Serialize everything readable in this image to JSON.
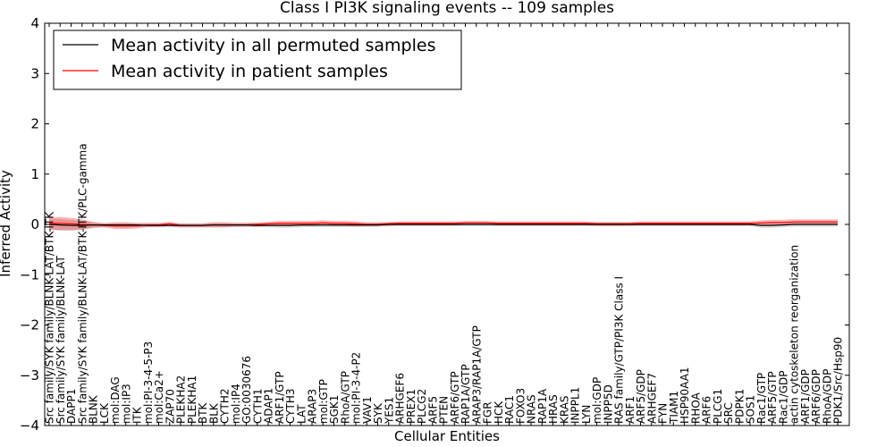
{
  "chart_data": {
    "type": "line",
    "title": "Class I PI3K signaling events -- 109 samples",
    "xlabel": "Cellular Entities",
    "ylabel": "Inferred Activity",
    "ylim": [
      -4,
      4
    ],
    "yticks": [
      -4,
      -3,
      -2,
      -1,
      0,
      1,
      2,
      3,
      4
    ],
    "legend_position": "top-left",
    "categories": [
      "Src family/SYK family/BLNK-LAT/BTK-ITK",
      "Src family/SYK family/BLNK-LAT",
      "DAPP1",
      "Src family/SYK family/BLNK-LAT/BTK-ITK/PLC-gamma",
      "BLNK",
      "LCK",
      "mol:DAG",
      "mol:IP3",
      "ITK",
      "mol:PI-3-4-5-P3",
      "mol:Ca2+",
      "ZAP70",
      "PLEKHA2",
      "PLEKHA1",
      "BTK",
      "BLK",
      "CYTH2",
      "mol:IP4",
      "GO:0030676",
      "CYTH1",
      "ADAP1",
      "ARF1/GTP",
      "CYTH3",
      "LAT",
      "ARAP3",
      "mol:GTP",
      "SGK1",
      "RhoA/GTP",
      "mol:PI-3-4-P2",
      "VAV1",
      "SYK",
      "YES1",
      "ARHGEF6",
      "PREX1",
      "PLCG2",
      "ARF5",
      "PTEN",
      "ARF6/GTP",
      "RAP1A/GTP",
      "ARAP3/RAP1A/GTP",
      "FGR",
      "HCK",
      "RAC1",
      "FOXO3",
      "NRAS",
      "RAP1A",
      "HRAS",
      "KRAS",
      "INPPL1",
      "LYN",
      "mol:GDP",
      "INPP5D",
      "RAS family/GTP/PI3K Class I",
      "ARF1",
      "ARF5/GDP",
      "ARHGEF7",
      "FYN",
      "TIAM1",
      "HSP90AA1",
      "RHOA",
      "ARF6",
      "PLCG1",
      "SRC",
      "PDPK1",
      "SOS1",
      "Rac1/GTP",
      "ARF5/GTP",
      "Rac1/GDP",
      "actin cytoskeleton reorganization",
      "ARF1/GDP",
      "ARF6/GDP",
      "RhoA/GDP",
      "PDK1/Src/Hsp90"
    ],
    "series": [
      {
        "name": "Mean activity in all permuted samples",
        "color": "#000000",
        "values": [
          0.0,
          -0.01,
          -0.02,
          -0.02,
          -0.01,
          -0.01,
          -0.01,
          -0.01,
          -0.01,
          -0.02,
          -0.02,
          -0.02,
          -0.02,
          -0.02,
          -0.02,
          -0.01,
          -0.01,
          -0.01,
          -0.01,
          -0.02,
          -0.02,
          -0.02,
          -0.02,
          -0.01,
          -0.01,
          -0.01,
          -0.01,
          -0.01,
          -0.01,
          -0.01,
          -0.01,
          0.0,
          0.0,
          0.0,
          0.0,
          0.0,
          0.0,
          0.0,
          0.0,
          0.0,
          0.0,
          0.0,
          0.0,
          0.0,
          0.0,
          0.0,
          0.0,
          0.0,
          0.0,
          0.0,
          0.0,
          0.0,
          0.0,
          0.0,
          0.0,
          0.0,
          0.0,
          0.0,
          0.0,
          0.0,
          0.0,
          0.0,
          0.0,
          0.0,
          0.0,
          -0.02,
          -0.02,
          -0.01,
          0.0,
          0.0,
          0.0,
          0.0,
          0.0
        ]
      },
      {
        "name": "Mean activity in patient samples",
        "color": "#ff0000",
        "values": [
          0.02,
          0.02,
          0.01,
          0.0,
          -0.01,
          -0.02,
          -0.03,
          -0.03,
          -0.03,
          -0.01,
          -0.01,
          0.01,
          -0.02,
          -0.02,
          -0.02,
          -0.01,
          -0.01,
          -0.01,
          -0.01,
          0.0,
          0.01,
          0.02,
          0.02,
          0.02,
          0.02,
          0.03,
          0.02,
          0.02,
          0.01,
          0.0,
          0.0,
          0.01,
          0.02,
          0.02,
          0.02,
          0.02,
          0.02,
          0.02,
          0.03,
          0.03,
          0.03,
          0.02,
          0.02,
          0.02,
          0.02,
          0.02,
          0.02,
          0.02,
          0.02,
          0.02,
          0.01,
          0.01,
          0.01,
          0.01,
          0.02,
          0.02,
          0.02,
          0.02,
          0.02,
          0.02,
          0.02,
          0.02,
          0.02,
          0.02,
          0.02,
          0.03,
          0.04,
          0.04,
          0.05,
          0.05,
          0.05,
          0.05,
          0.05
        ]
      }
    ],
    "band_halfwidth": [
      0.12,
      0.13,
      0.12,
      0.1,
      0.06,
      0.04,
      0.06,
      0.06,
      0.05,
      0.04,
      0.04,
      0.04,
      0.04,
      0.04,
      0.04,
      0.05,
      0.05,
      0.04,
      0.04,
      0.04,
      0.04,
      0.05,
      0.05,
      0.05,
      0.05,
      0.05,
      0.05,
      0.05,
      0.05,
      0.04,
      0.04,
      0.04,
      0.04,
      0.04,
      0.04,
      0.04,
      0.04,
      0.04,
      0.04,
      0.04,
      0.04,
      0.04,
      0.04,
      0.04,
      0.04,
      0.04,
      0.04,
      0.04,
      0.04,
      0.04,
      0.04,
      0.04,
      0.04,
      0.04,
      0.04,
      0.04,
      0.04,
      0.04,
      0.04,
      0.04,
      0.04,
      0.04,
      0.04,
      0.04,
      0.04,
      0.05,
      0.05,
      0.05,
      0.05,
      0.05,
      0.05,
      0.05,
      0.05
    ]
  }
}
